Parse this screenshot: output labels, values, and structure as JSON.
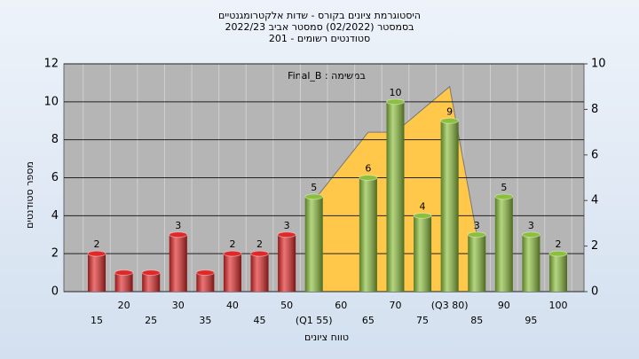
{
  "chart_data": {
    "type": "bar",
    "title": [
      "היסטוגרמת ציונים בקורס - שדות אלקטרומגנטיים",
      "בסמסטר (02/2022)  סמסטר אביב 2022/23",
      "סטודנטים רשומים - 201"
    ],
    "annotation": "במשימה : Final_B",
    "y_label": "מספר סטודנטים",
    "x_label": "טווח ציונים",
    "categories": [
      "15",
      "20",
      "25",
      "30",
      "35",
      "40",
      "45",
      "50",
      "(Q1 55)",
      "60",
      "65",
      "70",
      "75",
      "(Q3 80)",
      "85",
      "90",
      "95",
      "100"
    ],
    "values": [
      2,
      1,
      1,
      3,
      1,
      2,
      2,
      3,
      5,
      0,
      6,
      10,
      4,
      9,
      3,
      5,
      3,
      2
    ],
    "value_labels": [
      "2",
      null,
      null,
      "3",
      null,
      "2",
      "2",
      "3",
      "5",
      null,
      "6",
      "10",
      "4",
      "9",
      "3",
      "5",
      "3",
      "2"
    ],
    "colors": [
      "#e02828",
      "#e02828",
      "#e02828",
      "#e02828",
      "#e02828",
      "#e02828",
      "#e02828",
      "#e02828",
      "#8cbf3c",
      "#8cbf3c",
      "#8cbf3c",
      "#8cbf3c",
      "#8cbf3c",
      "#8cbf3c",
      "#8cbf3c",
      "#8cbf3c",
      "#8cbf3c",
      "#8cbf3c"
    ],
    "area": {
      "axis": "y2",
      "color": "#ffc84a",
      "values": [
        null,
        null,
        null,
        null,
        null,
        null,
        null,
        null,
        4,
        null,
        7,
        7,
        null,
        9,
        2.5,
        null,
        null,
        null
      ]
    },
    "ylim": [
      0,
      12
    ],
    "yticks": [
      0,
      2,
      4,
      6,
      8,
      10,
      12
    ],
    "y2lim": [
      0,
      10
    ],
    "y2ticks": [
      0,
      2,
      4,
      6,
      8,
      10
    ],
    "grid": true
  }
}
